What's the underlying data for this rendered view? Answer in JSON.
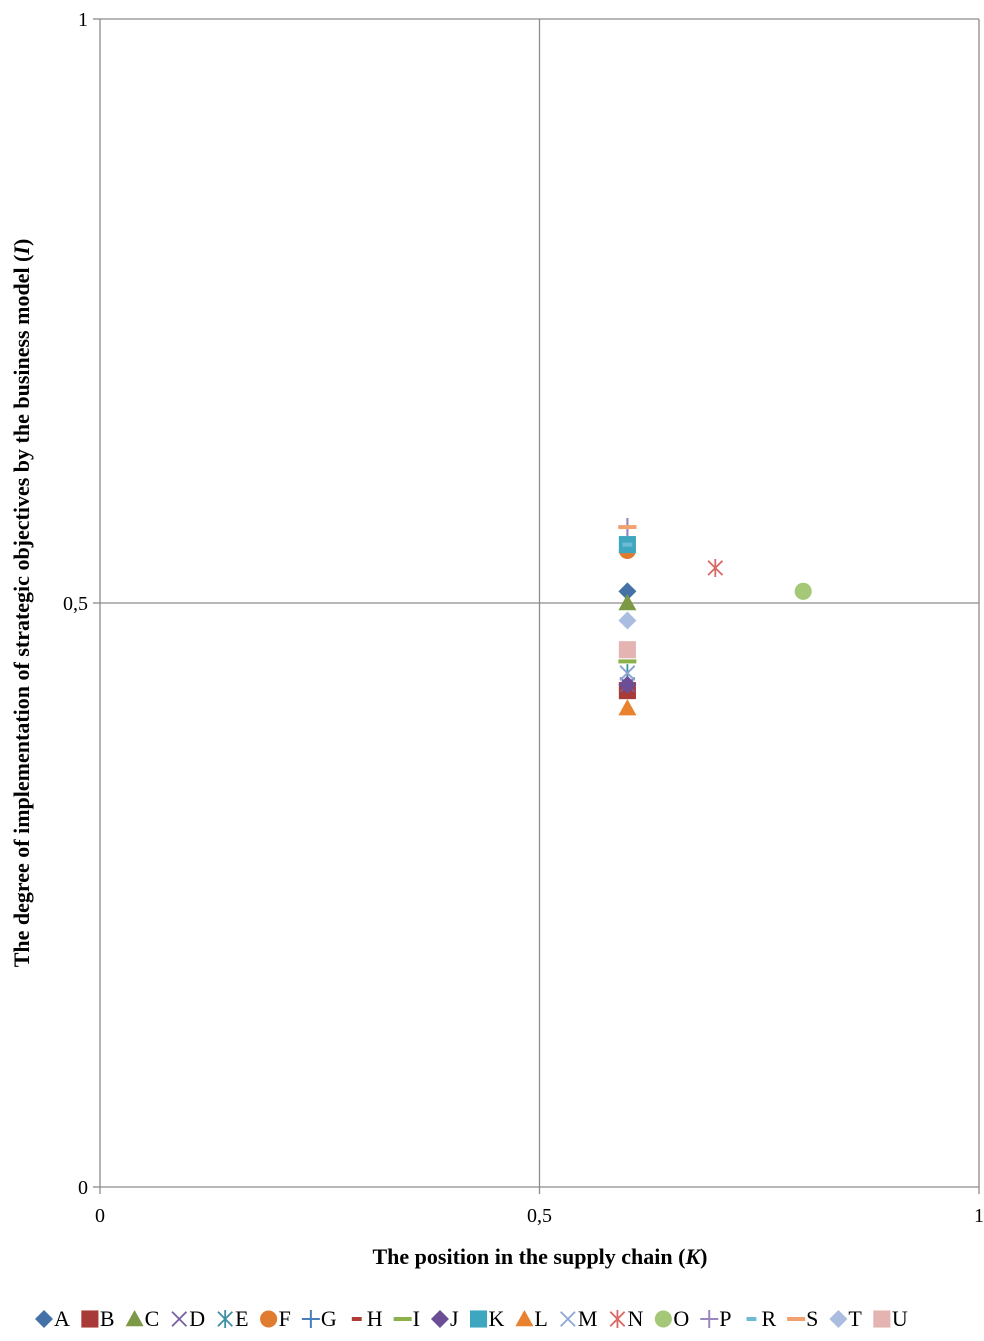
{
  "chart_data": {
    "type": "scatter",
    "xlabel": "The position in the supply chain",
    "xlabel_var": "K",
    "ylabel": "The degree of implementation of strategic objectives by the business model",
    "ylabel_var": "I",
    "xlim": [
      0,
      1
    ],
    "ylim": [
      0,
      1
    ],
    "x_ticks": [
      {
        "value": 0,
        "label": "0"
      },
      {
        "value": 0.5,
        "label": "0,5"
      },
      {
        "value": 1,
        "label": "1"
      }
    ],
    "y_ticks": [
      {
        "value": 0,
        "label": "0"
      },
      {
        "value": 0.5,
        "label": "0,5"
      },
      {
        "value": 1,
        "label": "1"
      }
    ],
    "grid": true,
    "legend_position": "bottom",
    "series": [
      {
        "name": "A",
        "marker": "diamond",
        "color": "#4472A8",
        "x": 0.6,
        "y": 0.51
      },
      {
        "name": "B",
        "marker": "square",
        "color": "#A83A38",
        "x": 0.6,
        "y": 0.425
      },
      {
        "name": "C",
        "marker": "triangle",
        "color": "#7C9A45",
        "x": 0.6,
        "y": 0.5
      },
      {
        "name": "D",
        "marker": "x",
        "color": "#7860A0",
        "x": 0.6,
        "y": 0.43
      },
      {
        "name": "E",
        "marker": "asterisk",
        "color": "#3E8FA6",
        "x": 0.6,
        "y": 0.44
      },
      {
        "name": "F",
        "marker": "circle",
        "color": "#E07B30",
        "x": 0.6,
        "y": 0.545
      },
      {
        "name": "G",
        "marker": "plus",
        "color": "#4A7EBB",
        "x": 0.6,
        "y": 0.565
      },
      {
        "name": "H",
        "marker": "dash",
        "color": "#B03A36",
        "x": 0.6,
        "y": 0.485
      },
      {
        "name": "I",
        "marker": "longdash",
        "color": "#8CB04A",
        "x": 0.6,
        "y": 0.45
      },
      {
        "name": "J",
        "marker": "diamond",
        "color": "#6B4E96",
        "x": 0.6,
        "y": 0.43
      },
      {
        "name": "K",
        "marker": "square",
        "color": "#3FA6BF",
        "x": 0.6,
        "y": 0.55
      },
      {
        "name": "L",
        "marker": "triangle",
        "color": "#E8822E",
        "x": 0.6,
        "y": 0.41
      },
      {
        "name": "M",
        "marker": "x",
        "color": "#8EA6D4",
        "x": 0.6,
        "y": 0.44
      },
      {
        "name": "N",
        "marker": "asterisk",
        "color": "#D86866",
        "x": 0.7,
        "y": 0.53
      },
      {
        "name": "O",
        "marker": "circle",
        "color": "#A5C878",
        "x": 0.8,
        "y": 0.51
      },
      {
        "name": "P",
        "marker": "plus",
        "color": "#9C86C0",
        "x": 0.6,
        "y": 0.565
      },
      {
        "name": "R",
        "marker": "dash",
        "color": "#6EBCD4",
        "x": 0.6,
        "y": 0.55
      },
      {
        "name": "S",
        "marker": "longdash",
        "color": "#F2A070",
        "x": 0.6,
        "y": 0.565
      },
      {
        "name": "T",
        "marker": "diamond",
        "color": "#AABCE0",
        "x": 0.6,
        "y": 0.485
      },
      {
        "name": "U",
        "marker": "square",
        "color": "#E3B4B2",
        "x": 0.6,
        "y": 0.46
      }
    ]
  }
}
